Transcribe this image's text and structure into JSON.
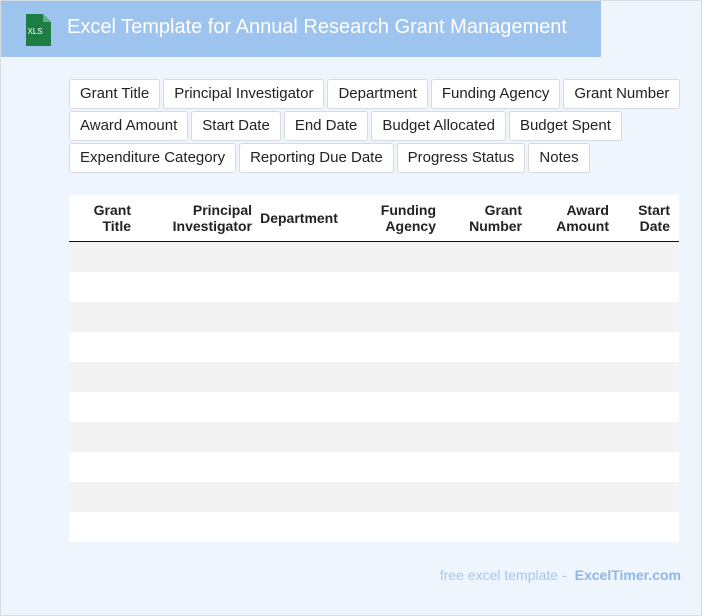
{
  "header": {
    "title": "Excel Template for Annual Research Grant Management",
    "icon_label": "XLS"
  },
  "tags": [
    [
      "Grant Title",
      "Principal Investigator",
      "Department",
      "Funding Agency",
      "Grant Number"
    ],
    [
      "Award Amount",
      "Start Date",
      "End Date",
      "Budget Allocated",
      "Budget Spent"
    ],
    [
      "Expenditure Category",
      "Reporting Due Date",
      "Progress Status",
      "Notes"
    ]
  ],
  "table": {
    "columns": [
      "Grant Title",
      "Principal Investigator",
      "Department",
      "Funding Agency",
      "Grant Number",
      "Award Amount",
      "Start Date"
    ]
  },
  "footer": {
    "text": "free excel template -",
    "brand": "ExcelTimer.com"
  }
}
